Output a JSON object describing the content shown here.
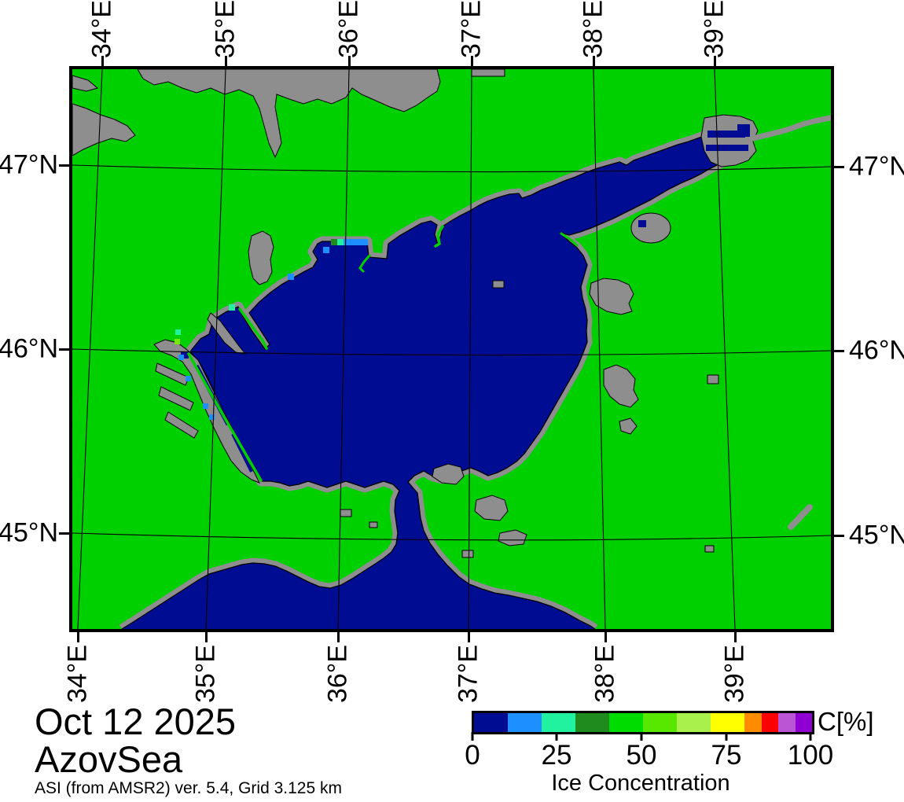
{
  "figure": {
    "date": "Oct 12 2025",
    "region": "AzovSea",
    "source_line": "ASI (from AMSR2) ver. 5.4,  Grid 3.125 km"
  },
  "axes": {
    "lon_labels": [
      "34°E",
      "35°E",
      "36°E",
      "37°E",
      "38°E",
      "39°E"
    ],
    "lat_labels": [
      "47°N",
      "46°N",
      "45°N"
    ]
  },
  "colorbar": {
    "unit_label": "C[%]",
    "axis_label": "Ice Concentration",
    "tick_labels": [
      "0",
      "25",
      "50",
      "75",
      "100"
    ],
    "segments": [
      {
        "range": "0-10",
        "color": "#000C92",
        "span": 10
      },
      {
        "range": "10-20",
        "color": "#1E8FFF",
        "span": 10
      },
      {
        "range": "20-30",
        "color": "#21F2A0",
        "span": 10
      },
      {
        "range": "30-40",
        "color": "#1F8B1F",
        "span": 10
      },
      {
        "range": "40-50",
        "color": "#00DC00",
        "span": 10
      },
      {
        "range": "50-60",
        "color": "#58E800",
        "span": 10
      },
      {
        "range": "60-70",
        "color": "#A8F04C",
        "span": 10
      },
      {
        "range": "70-80",
        "color": "#FFFF00",
        "span": 10
      },
      {
        "range": "80-85",
        "color": "#FF8C00",
        "span": 5
      },
      {
        "range": "85-90",
        "color": "#FF0000",
        "span": 5
      },
      {
        "range": "90-95",
        "color": "#BA55D3",
        "span": 5
      },
      {
        "range": "95-100",
        "color": "#8F00D3",
        "span": 5
      }
    ]
  },
  "map": {
    "land_color": "#00CF00",
    "open_water_color": "#000C92",
    "coast_buffer_color": "#8E8E8E",
    "graticule_color": "#000000",
    "observation": "Sea of Azov and adjoining Black Sea shown ice-free (0-10% class); scattered 10-30% pixels along the northwest coast and in the Sivash lagoon"
  },
  "chart_data": {
    "type": "heatmap",
    "title": "AzovSea ice concentration map",
    "date": "Oct 12 2025",
    "legend": {
      "label": "Ice Concentration",
      "unit": "C[%]",
      "ticks": [
        0,
        25,
        50,
        75,
        100
      ],
      "range": [
        0,
        100
      ]
    },
    "lon_ticks_deg_e": [
      34,
      35,
      36,
      37,
      38,
      39
    ],
    "lat_ticks_deg_n": [
      47,
      46,
      45
    ],
    "dominant_sea_ice_concentration_percent": 0
  }
}
